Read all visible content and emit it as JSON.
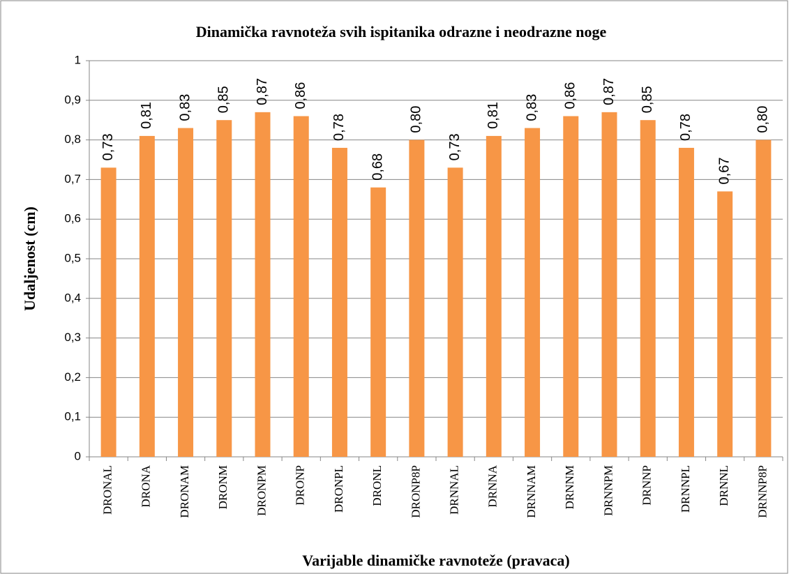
{
  "chart_data": {
    "type": "bar",
    "title": "Dinamička ravnoteža svih ispitanika odrazne i neodrazne noge",
    "y_label": "Udaljenost (cm)",
    "x_label": "Varijable dinamičke ravnoteže (pravaca)",
    "categories": [
      "DRONAL",
      "DRONA",
      "DRONAM",
      "DRONM",
      "DRONPM",
      "DRONP",
      "DRONPL",
      "DRONL",
      "DRONP8P",
      "DRNNAL",
      "DRNNA",
      "DRNNAM",
      "DRNNM",
      "DRNNPM",
      "DRNNP",
      "DRNNPL",
      "DRNNL",
      "DRNNP8P"
    ],
    "values": [
      0.73,
      0.81,
      0.83,
      0.85,
      0.87,
      0.86,
      0.78,
      0.68,
      0.8,
      0.73,
      0.81,
      0.83,
      0.86,
      0.87,
      0.85,
      0.78,
      0.67,
      0.8
    ],
    "value_labels": [
      "0,73",
      "0,81",
      "0,83",
      "0,85",
      "0,87",
      "0,86",
      "0,78",
      "0,68",
      "0,80",
      "0,73",
      "0,81",
      "0,83",
      "0,86",
      "0,87",
      "0,85",
      "0,78",
      "0,67",
      "0,80"
    ],
    "color": "#f79646",
    "ylim": [
      0,
      1
    ],
    "yticks": [
      0,
      {
        "value": 0.1,
        "label": "0,1"
      },
      {
        "value": 0.2,
        "label": "0,2"
      },
      {
        "value": 0.3,
        "label": "0,3"
      },
      {
        "value": 0.4,
        "label": "0,4"
      },
      {
        "value": 0.5,
        "label": "0,5"
      },
      {
        "value": 0.6,
        "label": "0,6"
      },
      {
        "value": 0.7,
        "label": "0,7"
      },
      {
        "value": 0.8,
        "label": "0,8"
      },
      {
        "value": 0.9,
        "label": "0,9"
      },
      1
    ],
    "grid": true
  }
}
